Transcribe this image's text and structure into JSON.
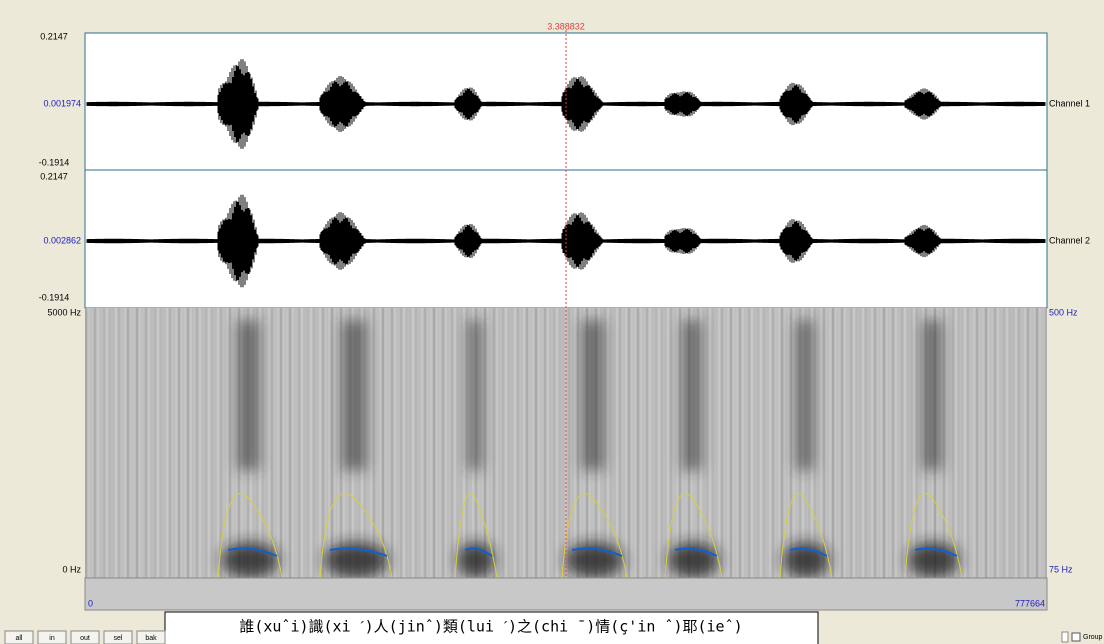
{
  "cursor": {
    "time": "3.388832"
  },
  "channels": [
    {
      "top": "0.2147",
      "middle": "0.001974",
      "bottom": "-0.1914",
      "name": "Channel 1"
    },
    {
      "top": "0.2147",
      "middle": "0.002862",
      "bottom": "-0.1914",
      "name": "Channel 2"
    }
  ],
  "spectrogram": {
    "top": "5000 Hz",
    "bottom": "0 Hz",
    "pitch_top": "500 Hz",
    "pitch_bottom": "75 Hz"
  },
  "time_bar": {
    "start": "0",
    "end": "777664"
  },
  "caption": "誰(xuˆi)識(xi ˊ)人(jinˆ)類(lui ˊ)之(chi ¯)情(ç'in ˆ)耶(ieˆ)",
  "buttons": [
    "all",
    "in",
    "out",
    "sel",
    "bak"
  ],
  "group": "Group"
}
